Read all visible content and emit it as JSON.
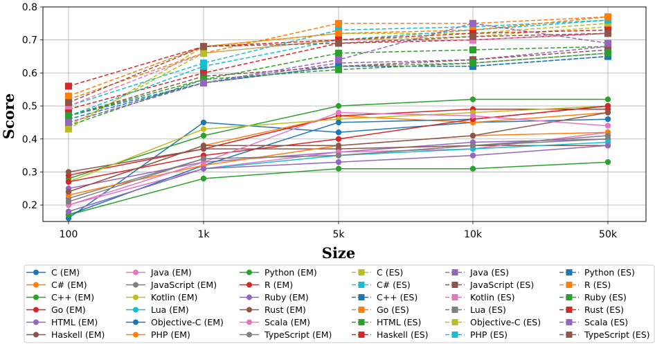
{
  "chart_data": {
    "type": "line",
    "xlabel": "Size",
    "ylabel": "Score",
    "categories": [
      "100",
      "1k",
      "5k",
      "10k",
      "50k"
    ],
    "ylim": [
      0.15,
      0.8
    ],
    "yticks": [
      "0.2",
      "0.3",
      "0.4",
      "0.5",
      "0.6",
      "0.7",
      "0.8"
    ],
    "grid": true,
    "legend_position": "bottom",
    "series": [
      {
        "name": "C (EM)",
        "color": "#1f77b4",
        "style": "solid",
        "marker": "circle",
        "values": [
          0.16,
          0.45,
          0.42,
          0.45,
          0.46
        ]
      },
      {
        "name": "C# (EM)",
        "color": "#ff7f0e",
        "style": "solid",
        "marker": "circle",
        "values": [
          0.24,
          0.38,
          0.47,
          0.45,
          0.48
        ]
      },
      {
        "name": "C++ (EM)",
        "color": "#2ca02c",
        "style": "solid",
        "marker": "circle",
        "values": [
          0.28,
          0.41,
          0.5,
          0.52,
          0.52
        ]
      },
      {
        "name": "Go (EM)",
        "color": "#d62728",
        "style": "solid",
        "marker": "circle",
        "values": [
          0.29,
          0.37,
          0.47,
          0.49,
          0.49
        ]
      },
      {
        "name": "HTML (EM)",
        "color": "#9467bd",
        "style": "solid",
        "marker": "circle",
        "values": [
          0.25,
          0.33,
          0.36,
          0.39,
          0.4
        ]
      },
      {
        "name": "Haskell (EM)",
        "color": "#8c564b",
        "style": "solid",
        "marker": "circle",
        "values": [
          0.3,
          0.37,
          0.37,
          0.38,
          0.38
        ]
      },
      {
        "name": "Java (EM)",
        "color": "#e377c2",
        "style": "solid",
        "marker": "circle",
        "values": [
          0.2,
          0.31,
          0.36,
          0.37,
          0.42
        ]
      },
      {
        "name": "JavaScript (EM)",
        "color": "#7f7f7f",
        "style": "solid",
        "marker": "circle",
        "values": [
          0.22,
          0.34,
          0.35,
          0.38,
          0.4
        ]
      },
      {
        "name": "Kotlin (EM)",
        "color": "#bcbd22",
        "style": "solid",
        "marker": "circle",
        "values": [
          0.27,
          0.43,
          0.46,
          0.48,
          0.5
        ]
      },
      {
        "name": "Lua (EM)",
        "color": "#17becf",
        "style": "solid",
        "marker": "circle",
        "values": [
          0.18,
          0.31,
          0.35,
          0.37,
          0.39
        ]
      },
      {
        "name": "Objective-C (EM)",
        "color": "#1f77b4",
        "style": "solid",
        "marker": "circle",
        "values": [
          0.17,
          0.32,
          0.45,
          0.46,
          0.5
        ]
      },
      {
        "name": "PHP (EM)",
        "color": "#ff7f0e",
        "style": "solid",
        "marker": "circle",
        "values": [
          0.23,
          0.32,
          0.38,
          0.41,
          0.42
        ]
      },
      {
        "name": "Python (EM)",
        "color": "#2ca02c",
        "style": "solid",
        "marker": "circle",
        "values": [
          0.17,
          0.28,
          0.31,
          0.31,
          0.33
        ]
      },
      {
        "name": "R (EM)",
        "color": "#d62728",
        "style": "solid",
        "marker": "circle",
        "values": [
          0.27,
          0.35,
          0.4,
          0.46,
          0.5
        ]
      },
      {
        "name": "Ruby (EM)",
        "color": "#9467bd",
        "style": "solid",
        "marker": "circle",
        "values": [
          0.18,
          0.31,
          0.33,
          0.35,
          0.38
        ]
      },
      {
        "name": "Rust (EM)",
        "color": "#8c564b",
        "style": "solid",
        "marker": "circle",
        "values": [
          0.24,
          0.38,
          0.38,
          0.41,
          0.48
        ]
      },
      {
        "name": "Scala (EM)",
        "color": "#e377c2",
        "style": "solid",
        "marker": "circle",
        "values": [
          0.2,
          0.33,
          0.48,
          0.47,
          0.44
        ]
      },
      {
        "name": "TypeScript (EM)",
        "color": "#7f7f7f",
        "style": "solid",
        "marker": "circle",
        "values": [
          0.21,
          0.34,
          0.35,
          0.38,
          0.41
        ]
      },
      {
        "name": "C (ES)",
        "color": "#bcbd22",
        "style": "dashed",
        "marker": "square",
        "values": [
          0.43,
          0.68,
          0.72,
          0.72,
          0.75
        ]
      },
      {
        "name": "C# (ES)",
        "color": "#17becf",
        "style": "dashed",
        "marker": "square",
        "values": [
          0.5,
          0.63,
          0.73,
          0.74,
          0.76
        ]
      },
      {
        "name": "C++ (ES)",
        "color": "#1f77b4",
        "style": "dashed",
        "marker": "square",
        "values": [
          0.46,
          0.57,
          0.62,
          0.62,
          0.65
        ]
      },
      {
        "name": "Go (ES)",
        "color": "#ff7f0e",
        "style": "dashed",
        "marker": "square",
        "values": [
          0.52,
          0.66,
          0.75,
          0.75,
          0.77
        ]
      },
      {
        "name": "HTML (ES)",
        "color": "#2ca02c",
        "style": "dashed",
        "marker": "square",
        "values": [
          0.44,
          0.58,
          0.66,
          0.67,
          0.68
        ]
      },
      {
        "name": "Haskell (ES)",
        "color": "#d62728",
        "style": "dashed",
        "marker": "square",
        "values": [
          0.49,
          0.6,
          0.69,
          0.7,
          0.72
        ]
      },
      {
        "name": "Java (ES)",
        "color": "#9467bd",
        "style": "dashed",
        "marker": "square",
        "values": [
          0.45,
          0.57,
          0.63,
          0.64,
          0.68
        ]
      },
      {
        "name": "JavaScript (ES)",
        "color": "#8c564b",
        "style": "dashed",
        "marker": "square",
        "values": [
          0.47,
          0.59,
          0.62,
          0.64,
          0.67
        ]
      },
      {
        "name": "Kotlin (ES)",
        "color": "#e377c2",
        "style": "dashed",
        "marker": "square",
        "values": [
          0.5,
          0.66,
          0.7,
          0.7,
          0.72
        ]
      },
      {
        "name": "Lua (ES)",
        "color": "#7f7f7f",
        "style": "dashed",
        "marker": "square",
        "values": [
          0.45,
          0.57,
          0.62,
          0.63,
          0.66
        ]
      },
      {
        "name": "Objective-C (ES)",
        "color": "#bcbd22",
        "style": "dashed",
        "marker": "square",
        "values": [
          0.44,
          0.66,
          0.7,
          0.71,
          0.74
        ]
      },
      {
        "name": "PHP (ES)",
        "color": "#17becf",
        "style": "dashed",
        "marker": "square",
        "values": [
          0.47,
          0.62,
          0.7,
          0.73,
          0.76
        ]
      },
      {
        "name": "Python (ES)",
        "color": "#1f77b4",
        "style": "dashed",
        "marker": "square",
        "values": [
          0.47,
          0.57,
          0.62,
          0.62,
          0.65
        ]
      },
      {
        "name": "R (ES)",
        "color": "#ff7f0e",
        "style": "dashed",
        "marker": "square",
        "values": [
          0.53,
          0.68,
          0.72,
          0.73,
          0.77
        ]
      },
      {
        "name": "Ruby (ES)",
        "color": "#2ca02c",
        "style": "dashed",
        "marker": "square",
        "values": [
          0.47,
          0.58,
          0.61,
          0.63,
          0.66
        ]
      },
      {
        "name": "Rust (ES)",
        "color": "#d62728",
        "style": "dashed",
        "marker": "square",
        "values": [
          0.56,
          0.68,
          0.7,
          0.72,
          0.73
        ]
      },
      {
        "name": "Scala (ES)",
        "color": "#9467bd",
        "style": "dashed",
        "marker": "square",
        "values": [
          0.45,
          0.57,
          0.64,
          0.75,
          0.69
        ]
      },
      {
        "name": "TypeScript (ES)",
        "color": "#8c564b",
        "style": "dashed",
        "marker": "square",
        "values": [
          0.51,
          0.68,
          0.69,
          0.71,
          0.72
        ]
      }
    ]
  }
}
